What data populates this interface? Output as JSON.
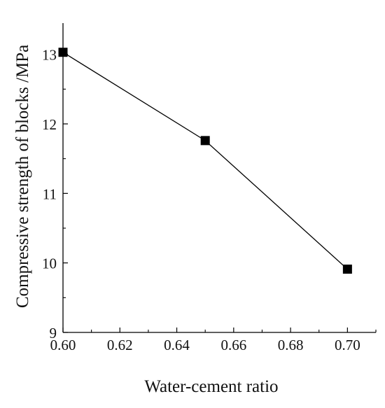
{
  "chart_data": {
    "type": "line",
    "title": "",
    "xlabel": "Water-cement ratio",
    "ylabel": "Compressive strength of blocks /MPa",
    "x": [
      0.6,
      0.65,
      0.7
    ],
    "series": [
      {
        "values": [
          13.03,
          11.76,
          9.91
        ],
        "color": "#000000",
        "marker": "square"
      }
    ],
    "xlim": [
      0.6,
      0.71
    ],
    "ylim": [
      9.0,
      13.45
    ],
    "x_ticks": [
      "0.60",
      "0.62",
      "0.64",
      "0.66",
      "0.68",
      "0.70"
    ],
    "y_ticks": [
      "9",
      "10",
      "11",
      "12",
      "13"
    ],
    "grid": false,
    "legend": "none"
  }
}
